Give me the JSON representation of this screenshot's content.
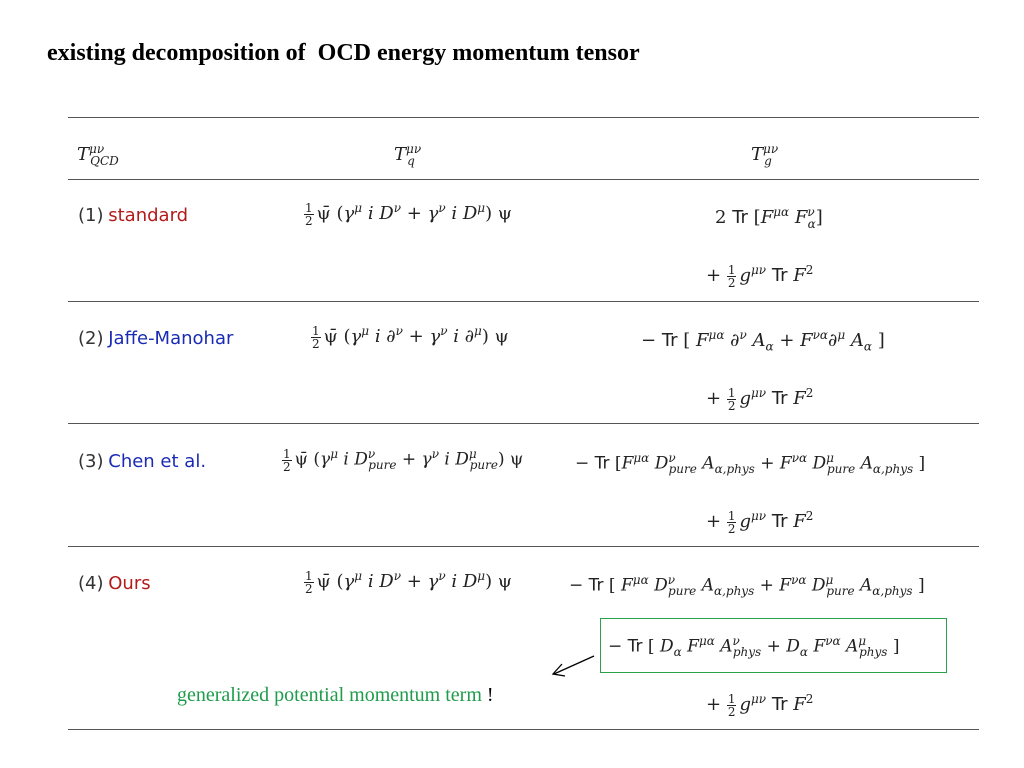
{
  "title": "existing decomposition of  OCD energy momentum tensor",
  "header": {
    "col1": {
      "base": "T",
      "sup": "μν",
      "sub": "QCD"
    },
    "col2": {
      "base": "T",
      "sup": "μν",
      "sub": "q"
    },
    "col3": {
      "base": "T",
      "sup": "μν",
      "sub": "g"
    }
  },
  "rows": [
    {
      "num": "(1)",
      "name": "standard"
    },
    {
      "num": "(2)",
      "name": "Jaffe-Manohar"
    },
    {
      "num": "(3)",
      "name": "Chen et al."
    },
    {
      "num": "(4)",
      "name": "Ours"
    }
  ],
  "common": {
    "half_num": "1",
    "half_den": "2",
    "tr": "Tr",
    "psibar": "ψ̄",
    "psi": "ψ"
  },
  "annotation": {
    "text": "generalized potential momentum term",
    "bang": "!"
  },
  "colors": {
    "red_label": "#b31b1b",
    "blue_label": "#1a2bb5",
    "green": "#1e9b4b",
    "box_border": "#2aa24a"
  }
}
